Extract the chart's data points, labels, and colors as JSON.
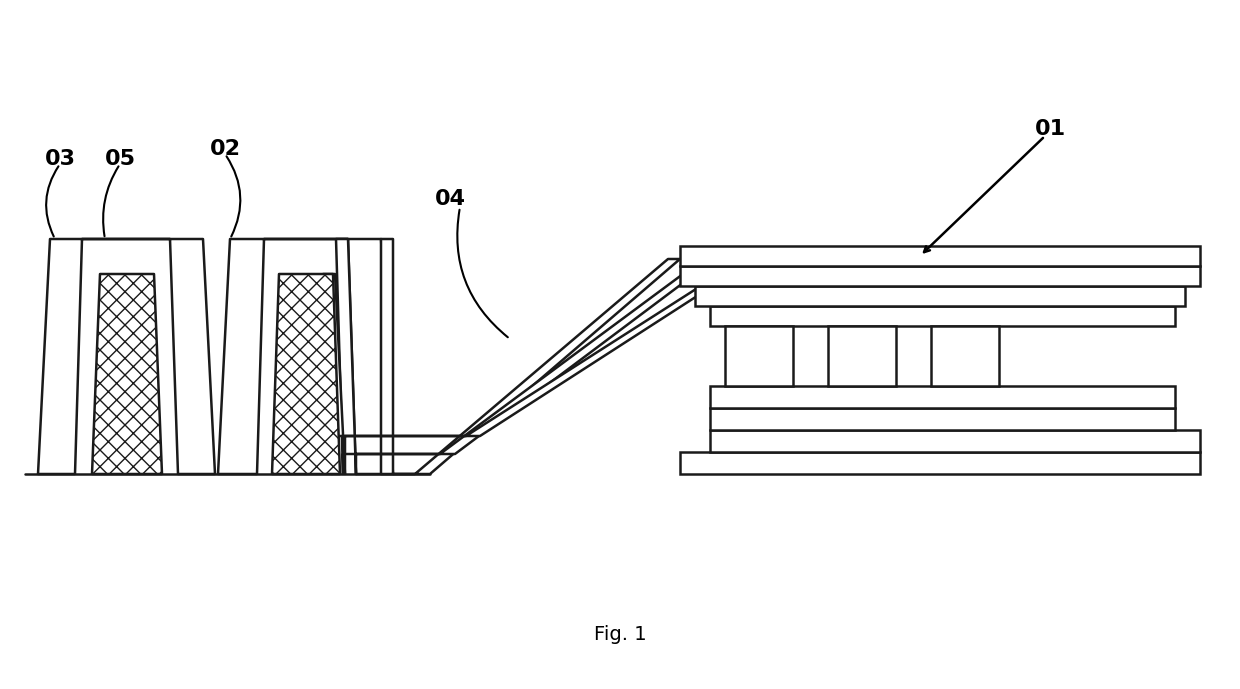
{
  "bg_color": "#ffffff",
  "line_color": "#1a1a1a",
  "fig_width": 12.4,
  "fig_height": 6.89,
  "caption": "Fig. 1",
  "caption_fontsize": 14
}
